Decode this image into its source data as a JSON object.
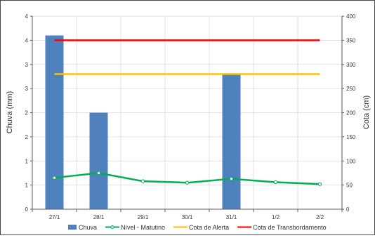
{
  "chart_data": {
    "type": "bar",
    "categories": [
      "27/1",
      "28/1",
      "29/1",
      "30/1",
      "31/1",
      "1/2",
      "2/2"
    ],
    "ylabel_left": "Chuva (mm)",
    "ylabel_right": "Cota (cm)",
    "y_left": {
      "ticks": [
        0,
        1,
        1,
        2,
        2,
        3,
        3,
        4,
        4
      ],
      "tick_positions": [
        0,
        0.5,
        1,
        1.5,
        2,
        2.5,
        3,
        3.5,
        4
      ],
      "ylim": [
        0,
        4
      ]
    },
    "y_right": {
      "ticks": [
        0,
        50,
        100,
        150,
        200,
        250,
        300,
        350,
        400
      ],
      "ylim": [
        0,
        400
      ]
    },
    "grid": true,
    "legend_placement": "bottom",
    "series": [
      {
        "name": "Chuva",
        "type": "bar",
        "axis": "left",
        "color": "#4f81bd",
        "values": [
          3.6,
          2.0,
          0,
          0,
          2.8,
          0,
          0
        ]
      },
      {
        "name": "Nível - Matutino",
        "type": "line",
        "axis": "right",
        "color": "#00b050",
        "marker": "circle-open",
        "values": [
          65,
          75,
          58,
          55,
          63,
          56,
          52
        ]
      },
      {
        "name": "Cota de Alerta",
        "type": "line",
        "axis": "right",
        "color": "#ffc000",
        "values": [
          280,
          280,
          280,
          280,
          280,
          280,
          280
        ]
      },
      {
        "name": "Cota de Transbordamento",
        "type": "line",
        "axis": "right",
        "color": "#ff0000",
        "values": [
          350,
          350,
          350,
          350,
          350,
          350,
          350
        ]
      }
    ]
  }
}
